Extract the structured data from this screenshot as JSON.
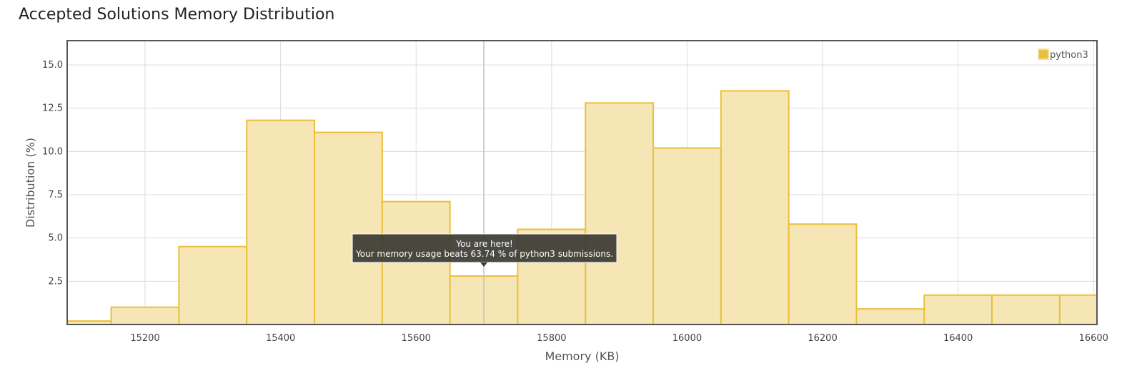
{
  "title": "Accepted Solutions Memory Distribution",
  "chart_data": {
    "type": "bar",
    "xlabel": "Memory (KB)",
    "ylabel": "Distribution (%)",
    "xlim": [
      15085,
      16605
    ],
    "ylim": [
      0,
      16.4
    ],
    "bin_width": 100,
    "x_ticks": [
      15200,
      15400,
      15600,
      15800,
      16000,
      16200,
      16400,
      16600
    ],
    "y_ticks": [
      2.5,
      5.0,
      7.5,
      10.0,
      12.5,
      15.0
    ],
    "grid": true,
    "legend_position": "top-right",
    "bar_color": "#e9c03a",
    "bar_fill": "#f7e5b1",
    "series": [
      {
        "name": "python3",
        "x": [
          15100,
          15200,
          15300,
          15400,
          15500,
          15600,
          15700,
          15800,
          15900,
          16000,
          16100,
          16200,
          16300,
          16400,
          16500,
          16600
        ],
        "values": [
          0.2,
          1.0,
          4.5,
          11.8,
          11.1,
          7.1,
          2.8,
          5.5,
          12.8,
          10.2,
          13.5,
          5.8,
          0.9,
          1.7,
          1.7,
          1.7
        ]
      }
    ],
    "annotation": {
      "x": 15700,
      "line1": "You are here!",
      "line2": "Your memory usage beats 63.74 % of python3 submissions."
    }
  }
}
